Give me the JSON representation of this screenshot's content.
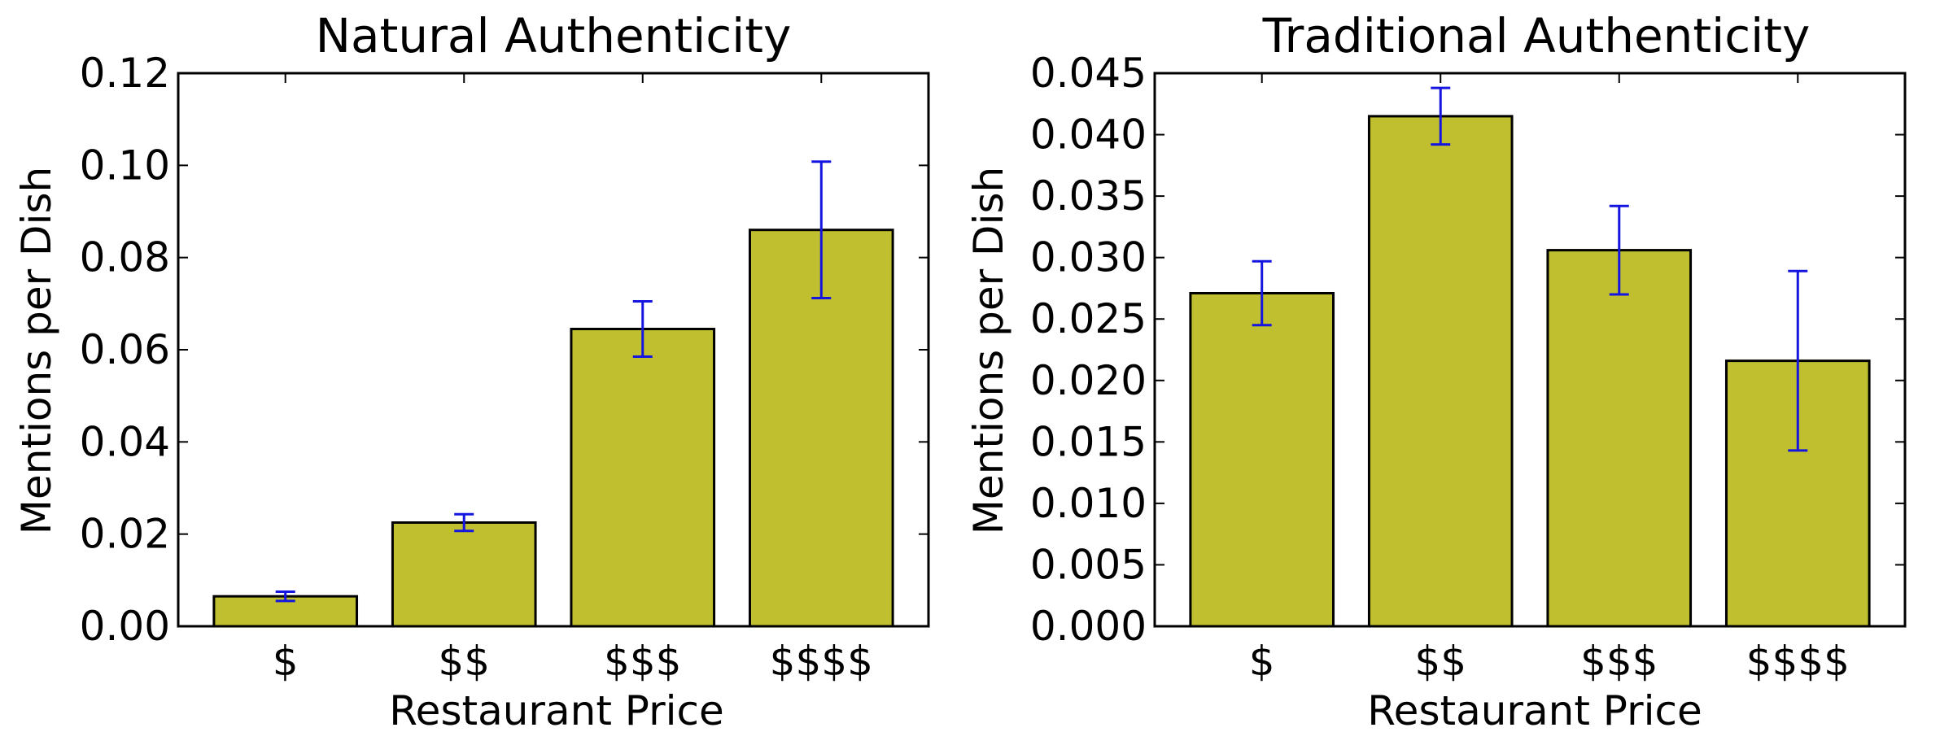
{
  "colors": {
    "bar": "#bfbf30",
    "error_bar": "#1515e0",
    "frame": "#000000"
  },
  "chart_data": [
    {
      "type": "bar",
      "title": "Natural Authenticity",
      "xlabel": "Restaurant Price",
      "ylabel": "Mentions per Dish",
      "categories": [
        "$",
        "$$",
        "$$$",
        "$$$$"
      ],
      "values": [
        0.0065,
        0.0225,
        0.0645,
        0.086
      ],
      "error": [
        0.001,
        0.0018,
        0.006,
        0.0148
      ],
      "ylim": [
        0,
        0.12
      ],
      "yticks": [
        0,
        0.02,
        0.04,
        0.06,
        0.08,
        0.1,
        0.12
      ],
      "ytick_labels": [
        "0.00",
        "0.02",
        "0.04",
        "0.06",
        "0.08",
        "0.10",
        "0.12"
      ],
      "grid": false
    },
    {
      "type": "bar",
      "title": "Traditional Authenticity",
      "xlabel": "Restaurant Price",
      "ylabel": "Mentions per Dish",
      "categories": [
        "$",
        "$$",
        "$$$",
        "$$$$"
      ],
      "values": [
        0.0271,
        0.0415,
        0.0306,
        0.0216
      ],
      "error": [
        0.0026,
        0.0023,
        0.0036,
        0.0073
      ],
      "ylim": [
        0,
        0.045
      ],
      "yticks": [
        0,
        0.005,
        0.01,
        0.015,
        0.02,
        0.025,
        0.03,
        0.035,
        0.04,
        0.045
      ],
      "ytick_labels": [
        "0.000",
        "0.005",
        "0.010",
        "0.015",
        "0.020",
        "0.025",
        "0.030",
        "0.035",
        "0.040",
        "0.045"
      ],
      "grid": false
    }
  ]
}
